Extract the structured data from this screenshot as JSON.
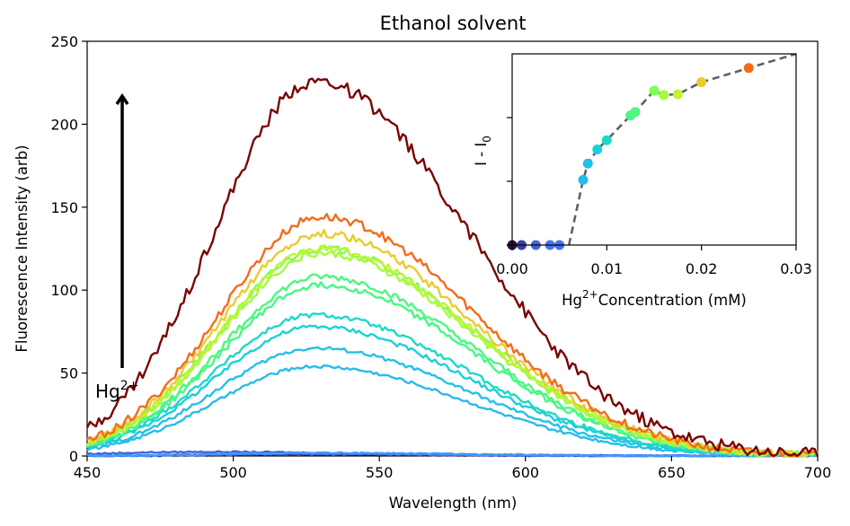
{
  "chart_data": [
    {
      "type": "line",
      "title": "Ethanol solvent",
      "xlabel": "Wavelength (nm)",
      "ylabel": "Fluorescence Intensity (arb)",
      "xlim": [
        450,
        700
      ],
      "ylim": [
        0,
        250
      ],
      "xticks": [
        450,
        500,
        550,
        600,
        650,
        700
      ],
      "yticks": [
        0,
        50,
        100,
        150,
        200,
        250
      ],
      "grid": false,
      "annotation": {
        "text_base": "Hg",
        "text_sup": "2+",
        "arrow": "upward",
        "x_start": 462,
        "y_start": 53,
        "y_end": 217
      },
      "series": [
        {
          "hg_mM": 0.0,
          "color": "#30123b",
          "peak_x": 527,
          "peak": 1
        },
        {
          "hg_mM": 0.001,
          "color": "#3a3fa3",
          "peak_x": 527,
          "peak": 1.2
        },
        {
          "hg_mM": 0.0025,
          "color": "#4662d7",
          "peak_x": 490,
          "peak": 2.5
        },
        {
          "hg_mM": 0.004,
          "color": "#4777ef",
          "peak_x": 527,
          "peak": 1.5
        },
        {
          "hg_mM": 0.005,
          "color": "#3e9bfe",
          "peak_x": 527,
          "peak": 1.8
        },
        {
          "hg_mM": 0.0075,
          "color": "#28bceb",
          "peak_x": 528,
          "peak": 54
        },
        {
          "hg_mM": 0.008,
          "color": "#25c0e7",
          "peak_x": 528,
          "peak": 65
        },
        {
          "hg_mM": 0.009,
          "color": "#1ad1d7",
          "peak_x": 528,
          "peak": 78
        },
        {
          "hg_mM": 0.01,
          "color": "#1ed9c8",
          "peak_x": 528,
          "peak": 85
        },
        {
          "hg_mM": 0.0125,
          "color": "#46f884",
          "peak_x": 530,
          "peak": 103
        },
        {
          "hg_mM": 0.013,
          "color": "#4ef77f",
          "peak_x": 530,
          "peak": 108
        },
        {
          "hg_mM": 0.015,
          "color": "#7dff56",
          "peak_x": 530,
          "peak": 125
        },
        {
          "hg_mM": 0.016,
          "color": "#a4fc3c",
          "peak_x": 530,
          "peak": 122
        },
        {
          "hg_mM": 0.0175,
          "color": "#c1f334",
          "peak_x": 530,
          "peak": 125
        },
        {
          "hg_mM": 0.02,
          "color": "#ebcb2e",
          "peak_x": 530,
          "peak": 134
        },
        {
          "hg_mM": 0.025,
          "color": "#f66b19",
          "peak_x": 530,
          "peak": 144
        },
        {
          "hg_mM": 0.03,
          "color": "#7a0403",
          "peak_x": 528,
          "peak": 226
        }
      ]
    },
    {
      "type": "scatter",
      "xlabel_base": "Hg",
      "xlabel_sup": "2+",
      "xlabel_rest": "Concentration (mM)",
      "ylabel_base": "I - I",
      "ylabel_sub": "0",
      "xlim": [
        0,
        0.03
      ],
      "xticks": [
        0.0,
        0.01,
        0.02,
        0.03
      ],
      "xtick_labels": [
        "0.00",
        "0.01",
        "0.02",
        "0.03"
      ],
      "ylim": [
        0,
        270
      ],
      "yticks": [
        0,
        90,
        180
      ],
      "ytick_labels": [],
      "fit_line": {
        "style": "dashed",
        "color": "#606060",
        "x": [
          0.006,
          0.0075,
          0.008,
          0.009,
          0.01,
          0.0125,
          0.013,
          0.015,
          0.016,
          0.0175,
          0.02,
          0.025,
          0.03
        ]
      },
      "points": [
        {
          "x": 0.0,
          "y": 0,
          "color": "#30123b"
        },
        {
          "x": 0.001,
          "y": 0,
          "color": "#3a3fa3"
        },
        {
          "x": 0.0025,
          "y": 0,
          "color": "#4662d7"
        },
        {
          "x": 0.004,
          "y": 0,
          "color": "#4777ef"
        },
        {
          "x": 0.005,
          "y": 0,
          "color": "#4671f0"
        },
        {
          "x": 0.0075,
          "y": 92,
          "color": "#28bceb"
        },
        {
          "x": 0.008,
          "y": 115,
          "color": "#25c0e7"
        },
        {
          "x": 0.009,
          "y": 135,
          "color": "#1ad1d7"
        },
        {
          "x": 0.01,
          "y": 148,
          "color": "#1ed9c8"
        },
        {
          "x": 0.0125,
          "y": 183,
          "color": "#46f884"
        },
        {
          "x": 0.013,
          "y": 188,
          "color": "#4ef77f"
        },
        {
          "x": 0.015,
          "y": 218,
          "color": "#7dff56"
        },
        {
          "x": 0.016,
          "y": 212,
          "color": "#a4fc3c"
        },
        {
          "x": 0.0175,
          "y": 213,
          "color": "#c1f334"
        },
        {
          "x": 0.02,
          "y": 230,
          "color": "#ebcb2e"
        },
        {
          "x": 0.025,
          "y": 250,
          "color": "#f66b19"
        },
        {
          "x": 0.03,
          "y": 270,
          "color": "#7a0403"
        }
      ]
    }
  ]
}
